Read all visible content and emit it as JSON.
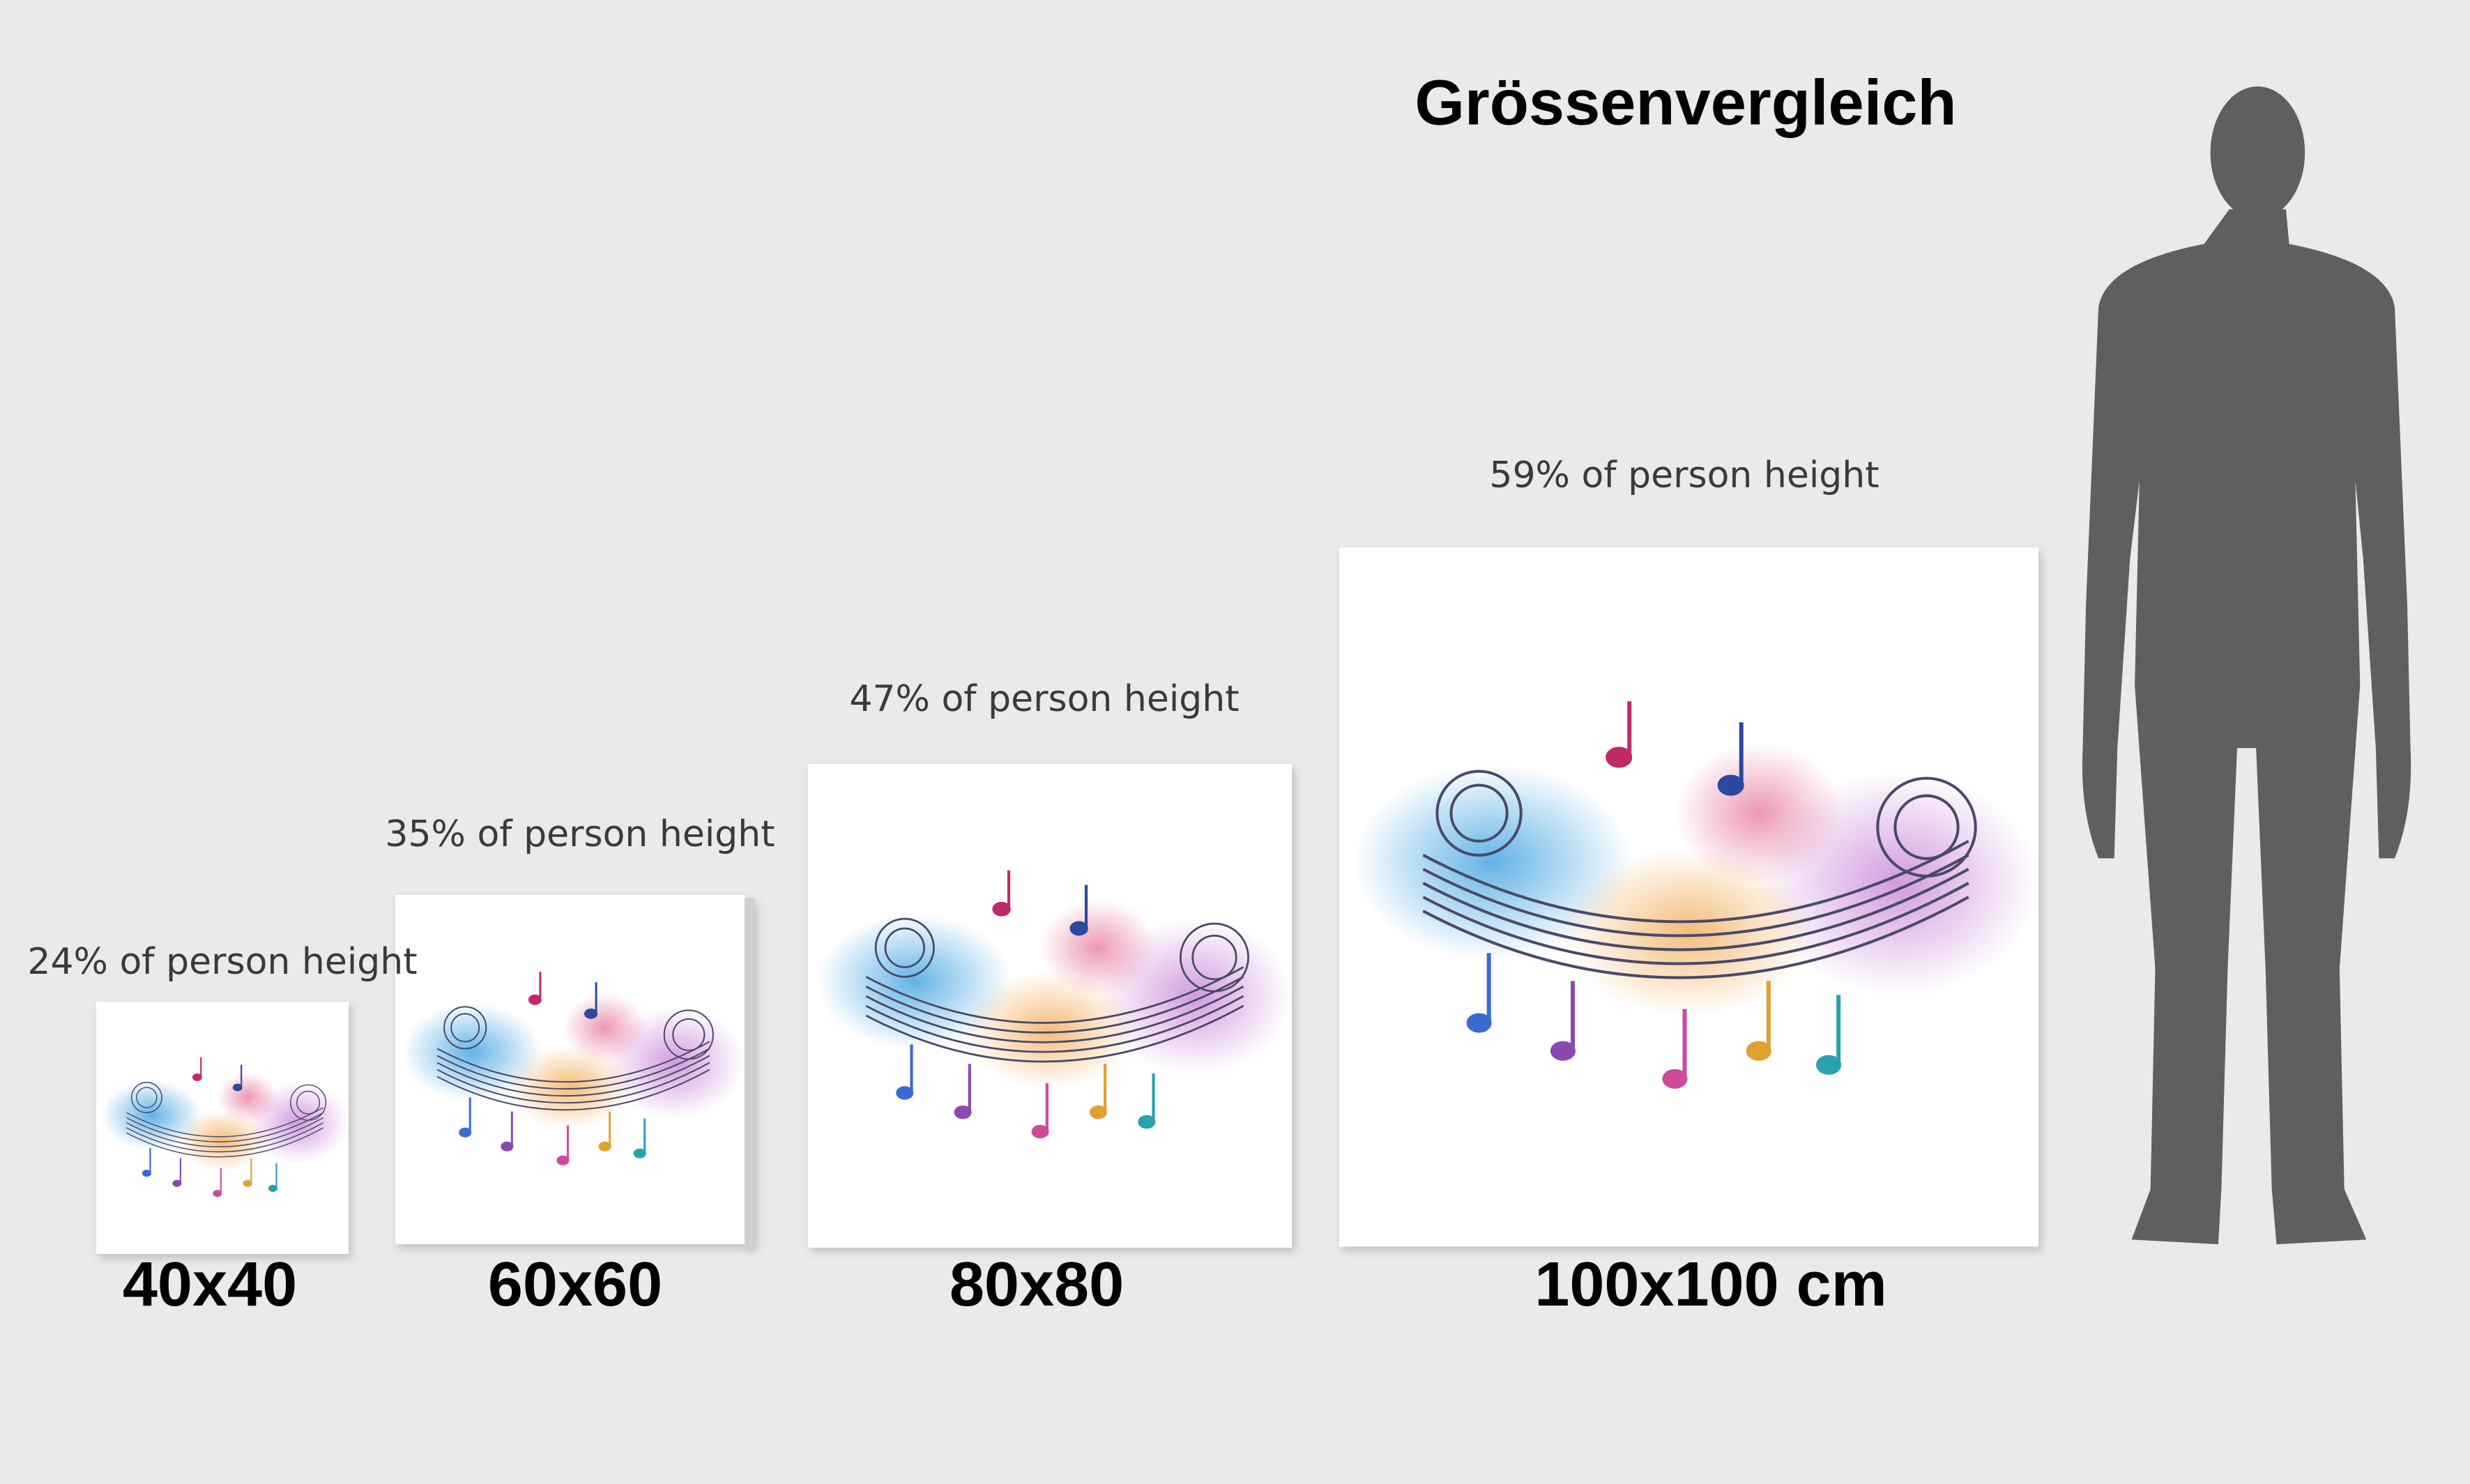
{
  "header": {
    "title": "Grössenvergleich"
  },
  "items": [
    {
      "caption": "24% of person height",
      "size": "40x40"
    },
    {
      "caption": "35% of person height",
      "size": "60x60"
    },
    {
      "caption": "47% of person height",
      "size": "80x80"
    },
    {
      "caption": "59% of person height",
      "size": "100x100 cm"
    }
  ]
}
